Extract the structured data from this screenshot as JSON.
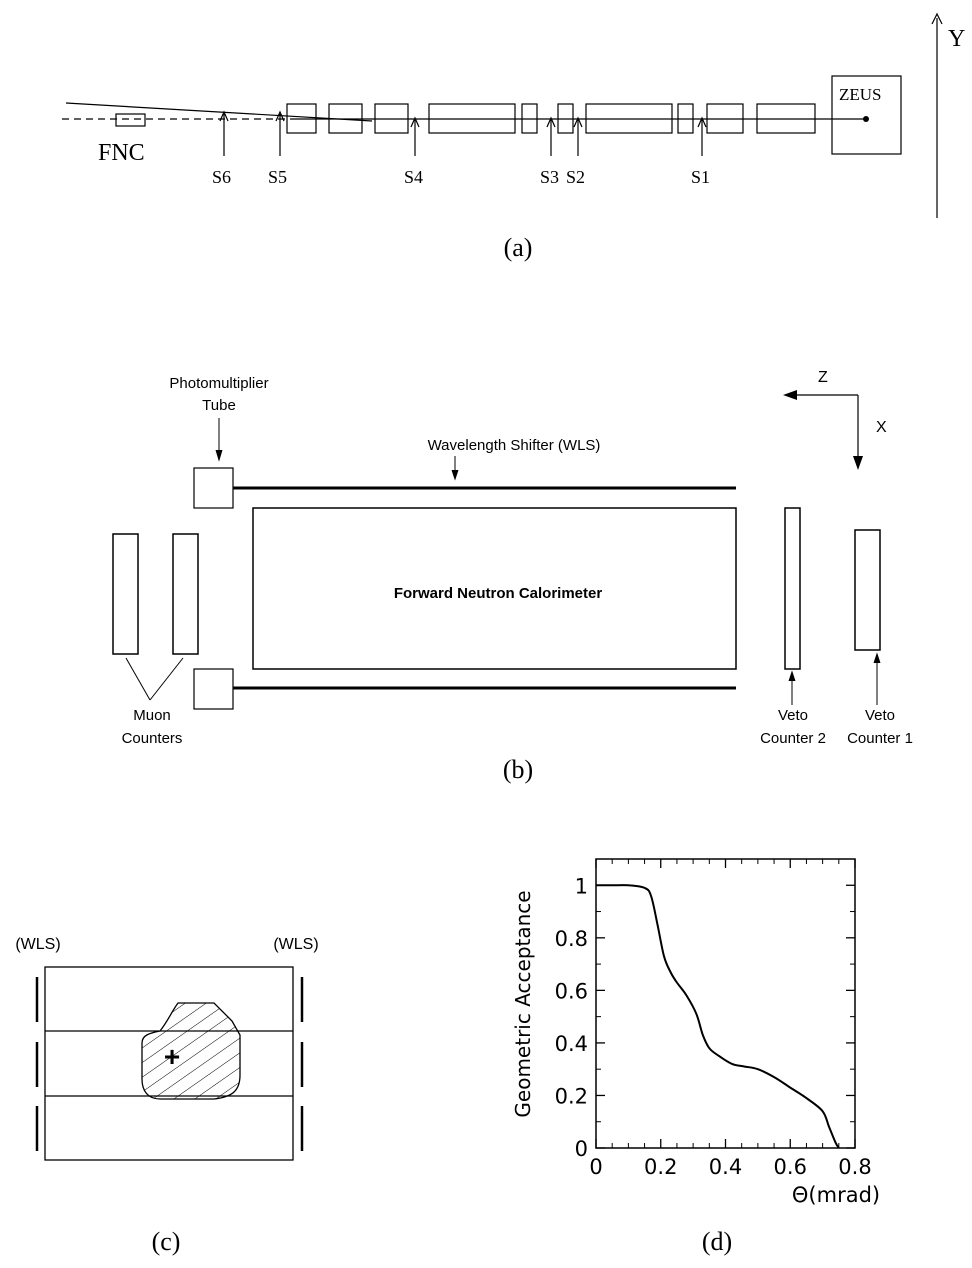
{
  "panel_a": {
    "caption": "(a)",
    "axis_label": "Y",
    "fnc_label": "FNC",
    "zeus_label": "ZEUS",
    "stations": [
      "S6",
      "S5",
      "S4",
      "S3",
      "S2",
      "S1"
    ]
  },
  "panel_b": {
    "caption": "(b)",
    "pmt_label_line1": "Photomultiplier",
    "pmt_label_line2": "Tube",
    "wls_label": "Wavelength Shifter  (WLS)",
    "calorimeter_label": "Forward Neutron Calorimeter",
    "muon_label_line1": "Muon",
    "muon_label_line2": "Counters",
    "veto2_line1": "Veto",
    "veto2_line2": "Counter 2",
    "veto1_line1": "Veto",
    "veto1_line2": "Counter 1",
    "axis_z": "Z",
    "axis_x": "X"
  },
  "panel_c": {
    "caption": "(c)",
    "wls_left": "(WLS)",
    "wls_right": "(WLS)",
    "center_mark": "+"
  },
  "panel_d": {
    "caption": "(d)"
  },
  "chart_data": {
    "type": "line",
    "title": "",
    "xlabel": "Θ(mrad)",
    "ylabel": "Geometric Acceptance",
    "xlim": [
      0,
      0.8
    ],
    "ylim": [
      0,
      1.1
    ],
    "xticks": [
      "0",
      "0.2",
      "0.4",
      "0.6",
      "0.8"
    ],
    "yticks": [
      "0",
      "0.2",
      "0.4",
      "0.6",
      "0.8",
      "1"
    ],
    "grid": false,
    "series": [
      {
        "x": [
          0,
          0.05,
          0.1,
          0.15,
          0.17,
          0.19,
          0.21,
          0.23,
          0.25,
          0.28,
          0.31,
          0.33,
          0.35,
          0.38,
          0.42,
          0.46,
          0.5,
          0.55,
          0.6,
          0.65,
          0.7,
          0.72,
          0.74,
          0.75
        ],
        "y": [
          1.0,
          1.0,
          1.0,
          0.99,
          0.96,
          0.85,
          0.73,
          0.67,
          0.63,
          0.58,
          0.51,
          0.43,
          0.38,
          0.35,
          0.32,
          0.31,
          0.3,
          0.27,
          0.23,
          0.19,
          0.14,
          0.08,
          0.02,
          0.0
        ]
      }
    ]
  }
}
